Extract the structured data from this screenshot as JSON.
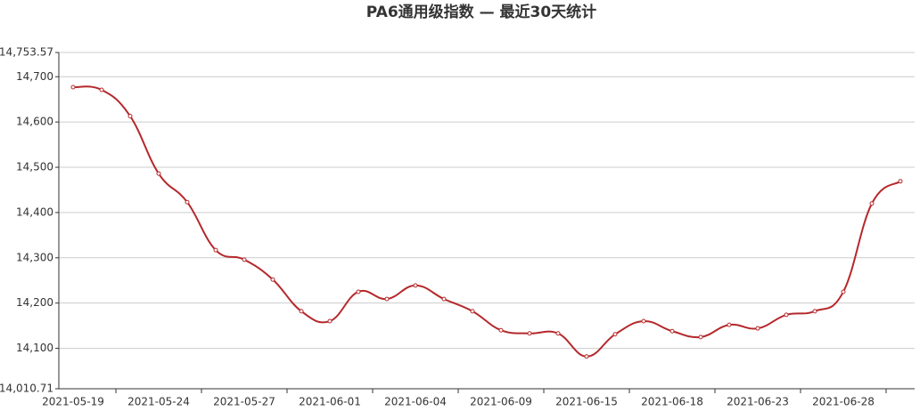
{
  "chart_data": {
    "type": "line",
    "title": "PA6通用级指数  —  最近30天统计",
    "categories": [
      "2021-05-19",
      null,
      null,
      "2021-05-24",
      null,
      null,
      "2021-05-27",
      null,
      null,
      "2021-06-01",
      null,
      null,
      "2021-06-04",
      null,
      null,
      "2021-06-09",
      null,
      null,
      "2021-06-15",
      null,
      null,
      "2021-06-18",
      null,
      null,
      "2021-06-23",
      null,
      null,
      "2021-06-28",
      null,
      null
    ],
    "series": [
      {
        "color": "#b5282b",
        "values": [
          14677,
          14671,
          14613,
          14486,
          14423,
          14317,
          14296,
          14252,
          14182,
          14160,
          14225,
          14209,
          14239,
          14209,
          14182,
          14140,
          14133,
          14133,
          14082,
          14131,
          14160,
          14138,
          14125,
          14152,
          14144,
          14174,
          14182,
          14225,
          14420,
          14469
        ]
      }
    ],
    "ylim": [
      14010.71,
      14753.57
    ],
    "yticks": [
      {
        "value": 14010.71,
        "label": "14,010.71"
      },
      {
        "value": 14100,
        "label": "14,100"
      },
      {
        "value": 14200,
        "label": "14,200"
      },
      {
        "value": 14300,
        "label": "14,300"
      },
      {
        "value": 14400,
        "label": "14,400"
      },
      {
        "value": 14500,
        "label": "14,500"
      },
      {
        "value": 14600,
        "label": "14,600"
      },
      {
        "value": 14700,
        "label": "14,700"
      },
      {
        "value": 14753.57,
        "label": "14,753.57"
      }
    ],
    "grid": true
  }
}
